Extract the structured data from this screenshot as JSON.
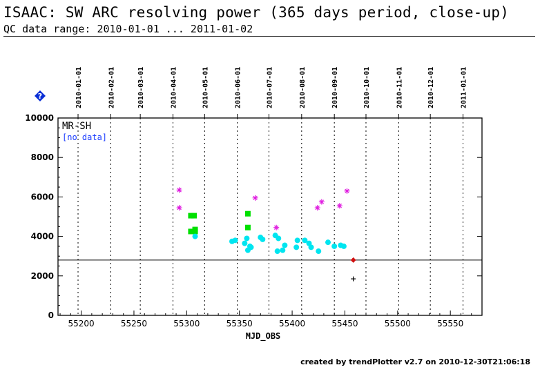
{
  "header": {
    "title": "ISAAC: SW ARC resolving power (365 days period, close-up)",
    "subtitle": "QC data range: 2010-01-01 ... 2011-01-02"
  },
  "footer": {
    "text": "created by trendPlotter v2.7 on 2010-12-30T21:06:18"
  },
  "help_icon": {
    "name": "help-icon",
    "color": "#0a2fd6"
  },
  "chart_data": {
    "type": "scatter",
    "title": "",
    "xlabel": "MJD_OBS",
    "ylabel": "",
    "xlim": [
      55178,
      55580
    ],
    "ylim": [
      0,
      10000
    ],
    "x_ticks": [
      55200,
      55250,
      55300,
      55350,
      55400,
      55450,
      55500,
      55550
    ],
    "y_ticks": [
      0,
      2000,
      4000,
      6000,
      8000,
      10000
    ],
    "top_date_ticks": [
      {
        "label": "2010-01-01",
        "mjd": 55197
      },
      {
        "label": "2010-02-01",
        "mjd": 55228
      },
      {
        "label": "2010-03-01",
        "mjd": 55256
      },
      {
        "label": "2010-04-01",
        "mjd": 55287
      },
      {
        "label": "2010-05-01",
        "mjd": 55317
      },
      {
        "label": "2010-06-01",
        "mjd": 55348
      },
      {
        "label": "2010-07-01",
        "mjd": 55378
      },
      {
        "label": "2010-08-01",
        "mjd": 55409
      },
      {
        "label": "2010-09-01",
        "mjd": 55440
      },
      {
        "label": "2010-10-01",
        "mjd": 55470
      },
      {
        "label": "2010-11-01",
        "mjd": 55501
      },
      {
        "label": "2010-12-01",
        "mjd": 55531
      },
      {
        "label": "2011-01-01",
        "mjd": 55562
      }
    ],
    "grid": "vertical dotted at month starts",
    "reference_line": 2800,
    "legend": {
      "label": "MR-SH",
      "status": "[no data]",
      "status_color": "#1a3cff",
      "placement": "top-left"
    },
    "series": [
      {
        "marker": "star",
        "color": "#e01ee0",
        "points": [
          [
            55293,
            6350
          ],
          [
            55293,
            5450
          ],
          [
            55365,
            5950
          ],
          [
            55385,
            4450
          ],
          [
            55424,
            5450
          ],
          [
            55428,
            5750
          ],
          [
            55445,
            5550
          ],
          [
            55452,
            6300
          ]
        ]
      },
      {
        "marker": "square",
        "color": "#00e000",
        "points": [
          [
            55304,
            5050
          ],
          [
            55307,
            5050
          ],
          [
            55304,
            4250
          ],
          [
            55308,
            4350
          ],
          [
            55308,
            4250
          ],
          [
            55358,
            5150
          ],
          [
            55358,
            4450
          ]
        ]
      },
      {
        "marker": "circle",
        "color": "#00e5f0",
        "points": [
          [
            55308,
            4000
          ],
          [
            55343,
            3750
          ],
          [
            55346,
            3800
          ],
          [
            55355,
            3650
          ],
          [
            55357,
            3900
          ],
          [
            55358,
            3300
          ],
          [
            55360,
            3500
          ],
          [
            55361,
            3450
          ],
          [
            55370,
            3950
          ],
          [
            55372,
            3850
          ],
          [
            55384,
            4050
          ],
          [
            55386,
            3250
          ],
          [
            55387,
            3900
          ],
          [
            55391,
            3300
          ],
          [
            55393,
            3550
          ],
          [
            55404,
            3450
          ],
          [
            55405,
            3800
          ],
          [
            55412,
            3800
          ],
          [
            55416,
            3650
          ],
          [
            55418,
            3450
          ],
          [
            55425,
            3250
          ],
          [
            55434,
            3700
          ],
          [
            55440,
            3500
          ],
          [
            55446,
            3550
          ],
          [
            55449,
            3500
          ]
        ]
      },
      {
        "marker": "diamond",
        "color": "#d01010",
        "points": [
          [
            55458,
            2800
          ]
        ]
      },
      {
        "marker": "plus",
        "color": "#000000",
        "points": [
          [
            55458,
            1850
          ]
        ]
      }
    ]
  }
}
